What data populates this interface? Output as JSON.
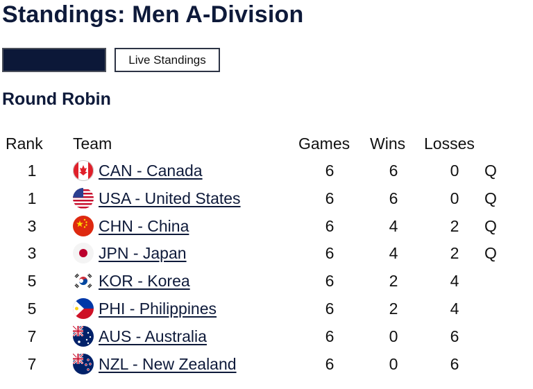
{
  "page": {
    "title": "Standings: Men A-Division"
  },
  "buttons": {
    "dark_label": "",
    "live_label": "Live Standings"
  },
  "section": {
    "title": "Round Robin"
  },
  "table": {
    "headers": {
      "rank": "Rank",
      "team": "Team",
      "games": "Games",
      "wins": "Wins",
      "losses": "Losses"
    },
    "rows": [
      {
        "rank": "1",
        "team": "CAN - Canada",
        "flag": "flag-canada-icon",
        "games": "6",
        "wins": "6",
        "losses": "0",
        "status": "Q"
      },
      {
        "rank": "1",
        "team": "USA - United States",
        "flag": "flag-usa-icon",
        "games": "6",
        "wins": "6",
        "losses": "0",
        "status": "Q"
      },
      {
        "rank": "3",
        "team": "CHN - China",
        "flag": "flag-china-icon",
        "games": "6",
        "wins": "4",
        "losses": "2",
        "status": "Q"
      },
      {
        "rank": "3",
        "team": "JPN - Japan",
        "flag": "flag-japan-icon",
        "games": "6",
        "wins": "4",
        "losses": "2",
        "status": "Q"
      },
      {
        "rank": "5",
        "team": "KOR - Korea",
        "flag": "flag-korea-icon",
        "games": "6",
        "wins": "2",
        "losses": "4",
        "status": ""
      },
      {
        "rank": "5",
        "team": "PHI - Philippines",
        "flag": "flag-philippines-icon",
        "games": "6",
        "wins": "2",
        "losses": "4",
        "status": ""
      },
      {
        "rank": "7",
        "team": "AUS - Australia",
        "flag": "flag-australia-icon",
        "games": "6",
        "wins": "0",
        "losses": "6",
        "status": ""
      },
      {
        "rank": "7",
        "team": "NZL - New Zealand",
        "flag": "flag-new-zealand-icon",
        "games": "6",
        "wins": "0",
        "losses": "6",
        "status": ""
      }
    ]
  }
}
